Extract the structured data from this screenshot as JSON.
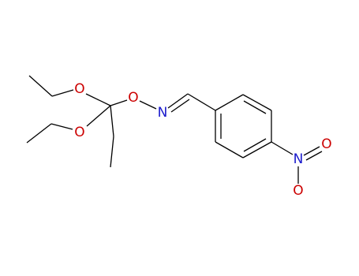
{
  "atoms": [
    {
      "label": "O"
    },
    {
      "label": "O"
    },
    {
      "label": "O"
    },
    {
      "label": "N"
    },
    {
      "label": "N"
    },
    {
      "label": "O"
    },
    {
      "label": "O"
    }
  ]
}
